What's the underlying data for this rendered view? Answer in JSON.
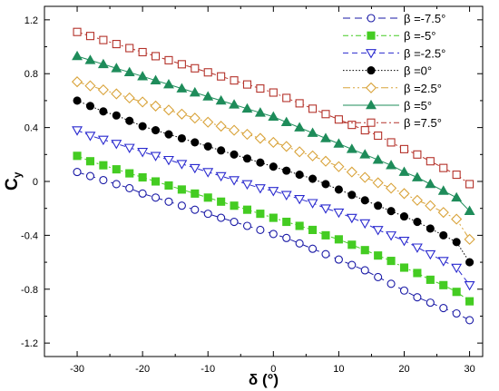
{
  "chart_data": {
    "type": "line",
    "xlabel": "δ (°)",
    "ylabel_main": "C",
    "ylabel_sub": "y",
    "xlim": [
      -35,
      32
    ],
    "ylim": [
      -1.3,
      1.3
    ],
    "xticks": [
      -30,
      -20,
      -10,
      0,
      10,
      20,
      30
    ],
    "yticks": [
      -1.2,
      -0.8,
      -0.4,
      0,
      0.4,
      0.8,
      1.2
    ],
    "x": [
      -30,
      -28,
      -26,
      -24,
      -22,
      -20,
      -18,
      -16,
      -14,
      -12,
      -10,
      -8,
      -6,
      -4,
      -2,
      0,
      2,
      4,
      6,
      8,
      10,
      12,
      14,
      16,
      18,
      20,
      22,
      24,
      26,
      28,
      30
    ],
    "legend_position": "top-right",
    "series": [
      {
        "name": "β =-7.5°",
        "color": "#1a1aa6",
        "marker": "circle-open",
        "dash": "8,5",
        "values": [
          0.07,
          0.04,
          0.01,
          -0.02,
          -0.05,
          -0.09,
          -0.12,
          -0.15,
          -0.18,
          -0.21,
          -0.24,
          -0.27,
          -0.3,
          -0.33,
          -0.36,
          -0.39,
          -0.42,
          -0.46,
          -0.5,
          -0.54,
          -0.58,
          -0.62,
          -0.66,
          -0.71,
          -0.76,
          -0.81,
          -0.86,
          -0.9,
          -0.94,
          -0.98,
          -1.03
        ]
      },
      {
        "name": "β =-5°",
        "color": "#44cc22",
        "marker": "square-filled",
        "dash": "6,3,2,3",
        "values": [
          0.19,
          0.15,
          0.12,
          0.09,
          0.06,
          0.03,
          0.0,
          -0.03,
          -0.06,
          -0.09,
          -0.12,
          -0.15,
          -0.18,
          -0.21,
          -0.24,
          -0.27,
          -0.3,
          -0.33,
          -0.36,
          -0.4,
          -0.43,
          -0.47,
          -0.51,
          -0.55,
          -0.59,
          -0.64,
          -0.68,
          -0.73,
          -0.77,
          -0.82,
          -0.89
        ]
      },
      {
        "name": "β =-2.5°",
        "color": "#2a2acf",
        "marker": "triangle-down-open",
        "dash": "6,4",
        "values": [
          0.38,
          0.34,
          0.31,
          0.28,
          0.25,
          0.22,
          0.19,
          0.16,
          0.13,
          0.1,
          0.07,
          0.04,
          0.01,
          -0.02,
          -0.05,
          -0.07,
          -0.1,
          -0.13,
          -0.16,
          -0.2,
          -0.23,
          -0.27,
          -0.31,
          -0.36,
          -0.4,
          -0.44,
          -0.49,
          -0.54,
          -0.59,
          -0.64,
          -0.77
        ]
      },
      {
        "name": "β =0°",
        "color": "#000000",
        "marker": "circle-filled",
        "dash": "1.5,2",
        "values": [
          0.6,
          0.56,
          0.52,
          0.49,
          0.45,
          0.41,
          0.38,
          0.35,
          0.32,
          0.29,
          0.26,
          0.23,
          0.2,
          0.17,
          0.14,
          0.11,
          0.08,
          0.05,
          0.02,
          -0.02,
          -0.06,
          -0.1,
          -0.14,
          -0.18,
          -0.22,
          -0.26,
          -0.3,
          -0.35,
          -0.4,
          -0.45,
          -0.6
        ]
      },
      {
        "name": "β =2.5°",
        "color": "#d9a33a",
        "marker": "diamond-open",
        "dash": "8,3,2,3,2,3",
        "values": [
          0.74,
          0.71,
          0.68,
          0.65,
          0.62,
          0.59,
          0.56,
          0.53,
          0.5,
          0.47,
          0.44,
          0.41,
          0.38,
          0.35,
          0.32,
          0.29,
          0.26,
          0.22,
          0.19,
          0.15,
          0.11,
          0.07,
          0.03,
          -0.01,
          -0.05,
          -0.09,
          -0.14,
          -0.18,
          -0.23,
          -0.28,
          -0.43
        ]
      },
      {
        "name": "β =5°",
        "color": "#1e8c5a",
        "marker": "triangle-up-filled",
        "dash": "",
        "values": [
          0.93,
          0.9,
          0.87,
          0.84,
          0.81,
          0.78,
          0.75,
          0.72,
          0.69,
          0.66,
          0.63,
          0.6,
          0.57,
          0.54,
          0.51,
          0.48,
          0.44,
          0.4,
          0.36,
          0.32,
          0.28,
          0.24,
          0.2,
          0.16,
          0.12,
          0.07,
          0.03,
          -0.02,
          -0.07,
          -0.12,
          -0.22
        ]
      },
      {
        "name": "β =7.5°",
        "color": "#b4322a",
        "marker": "square-open",
        "dash": "6,3,2,3",
        "values": [
          1.11,
          1.08,
          1.05,
          1.02,
          0.99,
          0.96,
          0.93,
          0.9,
          0.87,
          0.84,
          0.81,
          0.78,
          0.75,
          0.72,
          0.69,
          0.66,
          0.62,
          0.58,
          0.54,
          0.5,
          0.46,
          0.42,
          0.38,
          0.34,
          0.29,
          0.24,
          0.2,
          0.15,
          0.1,
          0.05,
          -0.02
        ]
      }
    ]
  }
}
